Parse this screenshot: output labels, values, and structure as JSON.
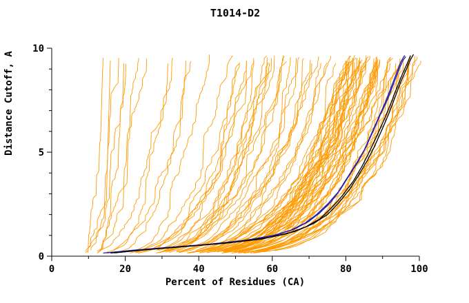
{
  "window": {
    "title": "T1014-D2"
  },
  "chart_data": {
    "type": "line",
    "title": "T1014-D2",
    "xlabel": "Percent of Residues (CA)",
    "ylabel": "Distance Cutoff, A",
    "xlim": [
      0,
      100
    ],
    "ylim": [
      0,
      10
    ],
    "xticks": {
      "major": [
        0,
        20,
        40,
        60,
        80,
        100
      ],
      "minor_step": 10
    },
    "yticks": {
      "major": [
        0,
        5,
        10
      ],
      "minor_step": 1
    },
    "grid": false,
    "legend": "none",
    "background": "#FFFFFF",
    "colors": {
      "ensemble": "#FF9A00",
      "highlight_black": "#000000",
      "highlight_blue": "#1F1FB4",
      "axis": "#000000"
    },
    "ensemble": {
      "description": "Approximately 95 overlapping orange model curves (percent of CA residues within each distance cutoff); individual curves not resolvable, regenerated procedurally from these parameters",
      "count": 95,
      "seed": 1337,
      "x_start_range": [
        4.5,
        11
      ],
      "y_start_range": [
        0.14,
        0.3
      ],
      "y_top_range": [
        9.3,
        9.7
      ],
      "end_distribution": [
        [
          0.5,
          80,
          100
        ],
        [
          0.3,
          50,
          82
        ],
        [
          0.2,
          12,
          52
        ]
      ],
      "k_base": 1.6,
      "k_slope": 3.6,
      "k_jitter": 1.4,
      "wiggle": 0.7,
      "stroke_width": 0.9
    },
    "series": [
      {
        "name": "highlight-blue-1",
        "color": "#1F1FB4",
        "stroke_width": 1.3,
        "points": [
          [
            14,
            0.15
          ],
          [
            22,
            0.28
          ],
          [
            32,
            0.42
          ],
          [
            42,
            0.56
          ],
          [
            52,
            0.74
          ],
          [
            60,
            0.98
          ],
          [
            65,
            1.25
          ],
          [
            69,
            1.6
          ],
          [
            72,
            2.0
          ],
          [
            75,
            2.5
          ],
          [
            78,
            3.1
          ],
          [
            80.5,
            3.8
          ],
          [
            83,
            4.5
          ],
          [
            85,
            5.1
          ],
          [
            87,
            5.9
          ],
          [
            89,
            6.7
          ],
          [
            91,
            7.5
          ],
          [
            92.5,
            8.2
          ],
          [
            94,
            8.9
          ],
          [
            95,
            9.35
          ],
          [
            96,
            9.65
          ]
        ]
      },
      {
        "name": "highlight-blue-2",
        "color": "#1F1FB4",
        "stroke_width": 1.3,
        "points": [
          [
            15,
            0.16
          ],
          [
            23,
            0.3
          ],
          [
            33,
            0.44
          ],
          [
            43,
            0.58
          ],
          [
            53,
            0.77
          ],
          [
            61,
            1.02
          ],
          [
            66,
            1.3
          ],
          [
            70,
            1.68
          ],
          [
            73,
            2.1
          ],
          [
            76,
            2.62
          ],
          [
            78.5,
            3.2
          ],
          [
            81,
            3.9
          ],
          [
            83.5,
            4.6
          ],
          [
            85.5,
            5.25
          ],
          [
            87.5,
            6.05
          ],
          [
            89.5,
            6.85
          ],
          [
            91.5,
            7.6
          ],
          [
            93,
            8.3
          ],
          [
            94.5,
            9.0
          ],
          [
            95.5,
            9.4
          ],
          [
            96.3,
            9.6
          ]
        ]
      },
      {
        "name": "highlight-black-1",
        "color": "#000000",
        "stroke_width": 1.3,
        "points": [
          [
            16,
            0.15
          ],
          [
            25,
            0.3
          ],
          [
            36,
            0.46
          ],
          [
            47,
            0.62
          ],
          [
            57,
            0.82
          ],
          [
            64,
            1.08
          ],
          [
            69,
            1.4
          ],
          [
            73,
            1.8
          ],
          [
            76,
            2.3
          ],
          [
            79,
            2.9
          ],
          [
            82,
            3.6
          ],
          [
            84.5,
            4.35
          ],
          [
            86.5,
            5.05
          ],
          [
            88.5,
            5.8
          ],
          [
            90.5,
            6.6
          ],
          [
            92.5,
            7.45
          ],
          [
            94,
            8.15
          ],
          [
            95.5,
            8.8
          ],
          [
            96.8,
            9.3
          ],
          [
            97.6,
            9.65
          ]
        ]
      },
      {
        "name": "highlight-black-2",
        "color": "#000000",
        "stroke_width": 1.3,
        "points": [
          [
            17,
            0.16
          ],
          [
            27,
            0.33
          ],
          [
            39,
            0.5
          ],
          [
            50,
            0.68
          ],
          [
            59,
            0.9
          ],
          [
            66,
            1.18
          ],
          [
            71,
            1.55
          ],
          [
            75,
            2.0
          ],
          [
            78,
            2.55
          ],
          [
            81,
            3.2
          ],
          [
            83.5,
            3.9
          ],
          [
            86,
            4.65
          ],
          [
            88,
            5.35
          ],
          [
            90,
            6.15
          ],
          [
            91.8,
            6.9
          ],
          [
            93.5,
            7.7
          ],
          [
            95,
            8.4
          ],
          [
            96.5,
            9.0
          ],
          [
            97.6,
            9.45
          ],
          [
            98.4,
            9.7
          ]
        ]
      }
    ]
  }
}
